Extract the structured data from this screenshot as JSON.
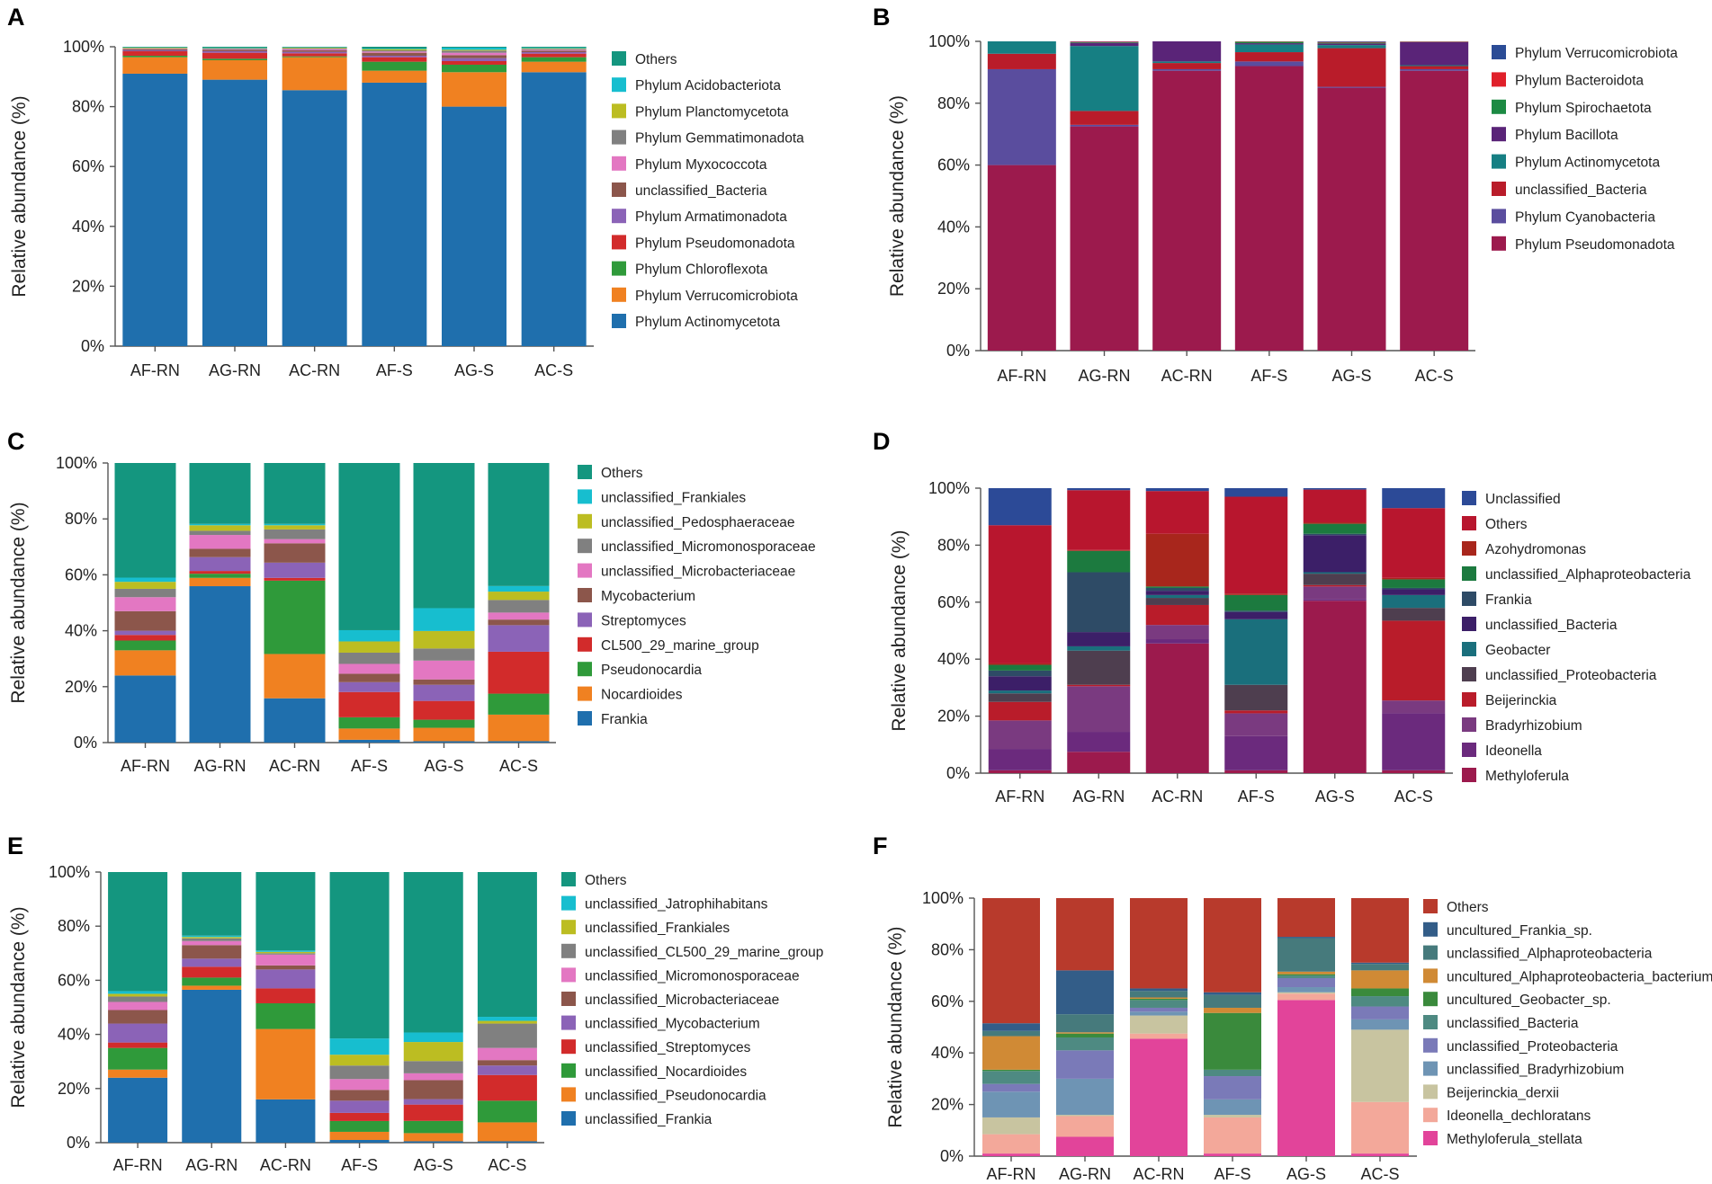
{
  "chart_data": [
    {
      "panel": "A",
      "type": "bar",
      "stacked": true,
      "ylabel": "Relative abundance (%)",
      "yticks": [
        "0%",
        "20%",
        "40%",
        "60%",
        "80%",
        "100%"
      ],
      "categories": [
        "AF-RN",
        "AG-RN",
        "AC-RN",
        "AF-S",
        "AG-S",
        "AC-S"
      ],
      "series": [
        {
          "name": "Phylum Actinomycetota",
          "color": "#1f6fad",
          "values": [
            91,
            89,
            85.5,
            88,
            80,
            91.5
          ]
        },
        {
          "name": "Phylum Verrucomicrobiota",
          "color": "#f08121",
          "values": [
            5.5,
            6.5,
            11,
            4,
            11.5,
            3.5
          ]
        },
        {
          "name": "Phylum Chloroflexota",
          "color": "#2f9a3a",
          "values": [
            0.5,
            0.5,
            0.3,
            3,
            2.5,
            1.5
          ]
        },
        {
          "name": "Phylum Pseudomonadota",
          "color": "#d22b2b",
          "values": [
            1.5,
            2,
            1,
            1.5,
            1.2,
            1.2
          ]
        },
        {
          "name": "Phylum Armatimonadota",
          "color": "#8b63b7",
          "values": [
            0.3,
            0.5,
            0.5,
            0.5,
            1,
            0.5
          ]
        },
        {
          "name": "unclassified_Bacteria",
          "color": "#8c564b",
          "values": [
            0.3,
            0.5,
            0.5,
            1,
            1,
            0.5
          ]
        },
        {
          "name": "Phylum Myxococcota",
          "color": "#e377c2",
          "values": [
            0.2,
            0.2,
            0.4,
            0.4,
            0.8,
            0.3
          ]
        },
        {
          "name": "Phylum Gemmatimonadota",
          "color": "#808080",
          "values": [
            0.2,
            0.2,
            0.3,
            0.4,
            0.7,
            0.3
          ]
        },
        {
          "name": "Phylum Planctomycetota",
          "color": "#bcbd22",
          "values": [
            0.2,
            0.1,
            0.2,
            0.4,
            0.3,
            0.2
          ]
        },
        {
          "name": "Phylum Acidobacteriota",
          "color": "#17becf",
          "values": [
            0.1,
            0.1,
            0.1,
            0.2,
            0.7,
            0.2
          ]
        },
        {
          "name": "Others",
          "color": "#14967f",
          "values": [
            0.2,
            0.4,
            0.2,
            0.6,
            0.3,
            0.3
          ]
        }
      ]
    },
    {
      "panel": "B",
      "type": "bar",
      "stacked": true,
      "ylabel": "Relative abundance (%)",
      "yticks": [
        "0%",
        "20%",
        "40%",
        "60%",
        "80%",
        "100%"
      ],
      "categories": [
        "AF-RN",
        "AG-RN",
        "AC-RN",
        "AF-S",
        "AG-S",
        "AC-S"
      ],
      "series": [
        {
          "name": "Phylum Pseudomonadota",
          "color": "#9c1a4d",
          "values": [
            60,
            72.5,
            90.5,
            92,
            85,
            90.5
          ]
        },
        {
          "name": "Phylum Cyanobacteria",
          "color": "#5a4d9e",
          "values": [
            31,
            0.5,
            0.5,
            1.5,
            0.3,
            0.5
          ]
        },
        {
          "name": "unclassified_Bacteria",
          "color": "#b91c2a",
          "values": [
            5,
            4.5,
            2,
            3,
            12.5,
            1
          ]
        },
        {
          "name": "Phylum Actinomycetota",
          "color": "#167f83",
          "values": [
            4,
            21,
            0.5,
            2.5,
            1,
            0.3
          ]
        },
        {
          "name": "Phylum Bacillota",
          "color": "#5a2478",
          "values": [
            0,
            1,
            6.5,
            0.4,
            0.5,
            7.5
          ]
        },
        {
          "name": "Phylum Spirochaetota",
          "color": "#1c8a43",
          "values": [
            0,
            0.2,
            0,
            0.5,
            0.3,
            0.1
          ]
        },
        {
          "name": "Phylum Bacteroidota",
          "color": "#e0202a",
          "values": [
            0,
            0.2,
            0,
            0.1,
            0.2,
            0.1
          ]
        },
        {
          "name": "Phylum Verrucomicrobiota",
          "color": "#2b4c96",
          "values": [
            0,
            0.1,
            0,
            0,
            0.2,
            0
          ]
        }
      ]
    },
    {
      "panel": "C",
      "type": "bar",
      "stacked": true,
      "ylabel": "Relative abundance (%)",
      "yticks": [
        "0%",
        "20%",
        "40%",
        "60%",
        "80%",
        "100%"
      ],
      "categories": [
        "AF-RN",
        "AG-RN",
        "AC-RN",
        "AF-S",
        "AG-S",
        "AC-S"
      ],
      "series": [
        {
          "name": "Frankia",
          "color": "#1f6fad",
          "values": [
            24,
            56.5,
            16,
            1,
            0.5,
            0.5
          ]
        },
        {
          "name": "Nocardioides",
          "color": "#f08121",
          "values": [
            9,
            3,
            16,
            4,
            5,
            9.5
          ]
        },
        {
          "name": "Pseudonocardia",
          "color": "#2f9a3a",
          "values": [
            3.5,
            1.5,
            26.5,
            4,
            3,
            7.5
          ]
        },
        {
          "name": "CL500_29_marine_group",
          "color": "#d22b2b",
          "values": [
            2,
            1,
            1,
            9,
            7,
            15
          ]
        },
        {
          "name": "Streptomyces",
          "color": "#8b63b7",
          "values": [
            1.5,
            5,
            5.5,
            3.5,
            6,
            9.5
          ]
        },
        {
          "name": "Mycobacterium",
          "color": "#8c564b",
          "values": [
            7,
            3,
            7,
            3,
            2,
            2
          ]
        },
        {
          "name": "unclassified_Microbacteriaceae",
          "color": "#e377c2",
          "values": [
            5,
            5,
            1.5,
            3.5,
            7,
            2.5
          ]
        },
        {
          "name": "unclassified_Micromonosporaceae",
          "color": "#808080",
          "values": [
            3,
            1.5,
            3.5,
            4,
            4.5,
            4.5
          ]
        },
        {
          "name": "unclassified_Pedosphaeraceae",
          "color": "#bcbd22",
          "values": [
            2.5,
            2,
            1.5,
            4,
            6.5,
            3
          ]
        },
        {
          "name": "unclassified_Frankiales",
          "color": "#17becf",
          "values": [
            1.5,
            0.5,
            0.5,
            4,
            8.5,
            2
          ]
        },
        {
          "name": "Others",
          "color": "#14967f",
          "values": [
            41,
            22,
            22,
            59.5,
            54,
            44
          ]
        }
      ]
    },
    {
      "panel": "D",
      "type": "bar",
      "stacked": true,
      "ylabel": "Relative abundance (%)",
      "yticks": [
        "0%",
        "20%",
        "40%",
        "60%",
        "80%",
        "100%"
      ],
      "categories": [
        "AF-RN",
        "AG-RN",
        "AC-RN",
        "AF-S",
        "AG-S",
        "AC-S"
      ],
      "series": [
        {
          "name": "Methyloferula",
          "color": "#9c1a4d",
          "values": [
            1,
            7.5,
            45.5,
            1,
            60.5,
            1
          ]
        },
        {
          "name": "Ideonella",
          "color": "#6b2a7d",
          "values": [
            7.5,
            7,
            1.5,
            12,
            0.5,
            20
          ]
        },
        {
          "name": "Bradyrhizobium",
          "color": "#7a3a80",
          "values": [
            10,
            16,
            5,
            8,
            4.5,
            4.5
          ]
        },
        {
          "name": "Beijerinckia",
          "color": "#b91c2a",
          "values": [
            6.5,
            0.5,
            7,
            1,
            0.5,
            28
          ]
        },
        {
          "name": "unclassified_Proteobacteria",
          "color": "#4e3e4f",
          "values": [
            3,
            12,
            2.5,
            9,
            4,
            4.5
          ]
        },
        {
          "name": "Geobacter",
          "color": "#1a6f7c",
          "values": [
            1,
            1.5,
            1,
            23,
            0.5,
            4.5
          ]
        },
        {
          "name": "unclassified_Bacteria",
          "color": "#3c1f68",
          "values": [
            5,
            5,
            1.5,
            2.5,
            13,
            2
          ]
        },
        {
          "name": "Frankia",
          "color": "#2e4b66",
          "values": [
            2,
            21,
            1,
            0.5,
            0.5,
            0.5
          ]
        },
        {
          "name": "unclassified_Alphaproteobacteria",
          "color": "#1c7a3f",
          "values": [
            2,
            7.5,
            0.5,
            5.5,
            3.5,
            3
          ]
        },
        {
          "name": "Azohydromonas",
          "color": "#a8261c",
          "values": [
            0.5,
            0.3,
            18.5,
            0.5,
            0.5,
            0.5
          ]
        },
        {
          "name": "Others",
          "color": "#b8162e",
          "values": [
            48.5,
            21,
            15,
            34,
            11.5,
            24.5
          ]
        },
        {
          "name": "Unclassified",
          "color": "#2c4a97",
          "values": [
            13,
            0.7,
            1,
            3,
            0.5,
            7
          ]
        }
      ]
    },
    {
      "panel": "E",
      "type": "bar",
      "stacked": true,
      "ylabel": "Relative abundance (%)",
      "yticks": [
        "0%",
        "20%",
        "40%",
        "60%",
        "80%",
        "100%"
      ],
      "categories": [
        "AF-RN",
        "AG-RN",
        "AC-RN",
        "AF-S",
        "AG-S",
        "AC-S"
      ],
      "series": [
        {
          "name": "unclassified_Frankia",
          "color": "#1f6fad",
          "values": [
            24,
            56.5,
            16,
            1,
            0.5,
            0.5
          ]
        },
        {
          "name": "unclassified_Pseudonocardia",
          "color": "#f08121",
          "values": [
            3,
            1.5,
            26,
            3,
            3,
            7
          ]
        },
        {
          "name": "unclassified_Nocardioides",
          "color": "#2f9a3a",
          "values": [
            8,
            3,
            9.5,
            4,
            4.5,
            8
          ]
        },
        {
          "name": "unclassified_Streptomyces",
          "color": "#d22b2b",
          "values": [
            2,
            4,
            5.5,
            3,
            6,
            9.5
          ]
        },
        {
          "name": "unclassified_Mycobacterium",
          "color": "#8b63b7",
          "values": [
            7,
            3,
            7,
            4.5,
            2,
            3.5
          ]
        },
        {
          "name": "unclassified_Microbacteriaceae",
          "color": "#8c564b",
          "values": [
            5,
            5,
            1.5,
            4,
            7,
            2
          ]
        },
        {
          "name": "unclassified_Micromonosporaceae",
          "color": "#e377c2",
          "values": [
            3,
            1.5,
            4,
            4,
            2.5,
            4.5
          ]
        },
        {
          "name": "unclassified_CL500_29_marine_group",
          "color": "#808080",
          "values": [
            2,
            1,
            0.5,
            5,
            4.5,
            9
          ]
        },
        {
          "name": "unclassified_Frankiales",
          "color": "#bcbd22",
          "values": [
            1,
            0.5,
            0.5,
            4,
            7,
            1
          ]
        },
        {
          "name": "unclassified_Jatrophihabitans",
          "color": "#17becf",
          "values": [
            1,
            0.5,
            0.5,
            6,
            3.5,
            1.5
          ]
        },
        {
          "name": "Others",
          "color": "#14967f",
          "values": [
            44,
            23.5,
            29,
            61.5,
            59,
            53.5
          ]
        }
      ]
    },
    {
      "panel": "F",
      "type": "bar",
      "stacked": true,
      "ylabel": "Relative abundance (%)",
      "yticks": [
        "0%",
        "20%",
        "40%",
        "60%",
        "80%",
        "100%"
      ],
      "categories": [
        "AF-RN",
        "AG-RN",
        "AC-RN",
        "AF-S",
        "AG-S",
        "AC-S"
      ],
      "series": [
        {
          "name": "Methyloferula_stellata",
          "color": "#e2449a",
          "values": [
            1,
            7.5,
            45.5,
            1,
            60.5,
            1
          ]
        },
        {
          "name": "Ideonella_dechloratans",
          "color": "#f3a89a",
          "values": [
            7.5,
            8,
            2,
            14,
            2.5,
            20
          ]
        },
        {
          "name": "Beijerinckia_derxii",
          "color": "#c8c4a0",
          "values": [
            6.5,
            0.5,
            7,
            1,
            0.5,
            28
          ]
        },
        {
          "name": "unclassified_Bradyrhizobium",
          "color": "#6e94b4",
          "values": [
            10,
            14,
            1.5,
            6,
            2,
            4
          ]
        },
        {
          "name": "unclassified_Proteobacteria",
          "color": "#7a7ab8",
          "values": [
            3,
            11,
            1.5,
            9,
            3.5,
            5
          ]
        },
        {
          "name": "unclassified_Bacteria",
          "color": "#4e8a82",
          "values": [
            5,
            5,
            3,
            2.5,
            1,
            4
          ]
        },
        {
          "name": "uncultured_Geobacter_sp.",
          "color": "#3a8a3c",
          "values": [
            0.5,
            1.5,
            0.5,
            22,
            0.5,
            3
          ]
        },
        {
          "name": "uncultured_Alphaproteobacteria_bacterium",
          "color": "#d08a35",
          "values": [
            13,
            0.5,
            0.5,
            2,
            1,
            7
          ]
        },
        {
          "name": "unclassified_Alphaproteobacteria",
          "color": "#467a7c",
          "values": [
            2,
            7,
            2.5,
            5,
            13,
            2.5
          ]
        },
        {
          "name": "uncultured_Frankia_sp.",
          "color": "#335d88",
          "values": [
            3,
            17,
            1,
            1,
            0.5,
            0.5
          ]
        },
        {
          "name": "Others",
          "color": "#b83a2c",
          "values": [
            48.5,
            28,
            35,
            36.5,
            15,
            25
          ]
        }
      ]
    }
  ]
}
